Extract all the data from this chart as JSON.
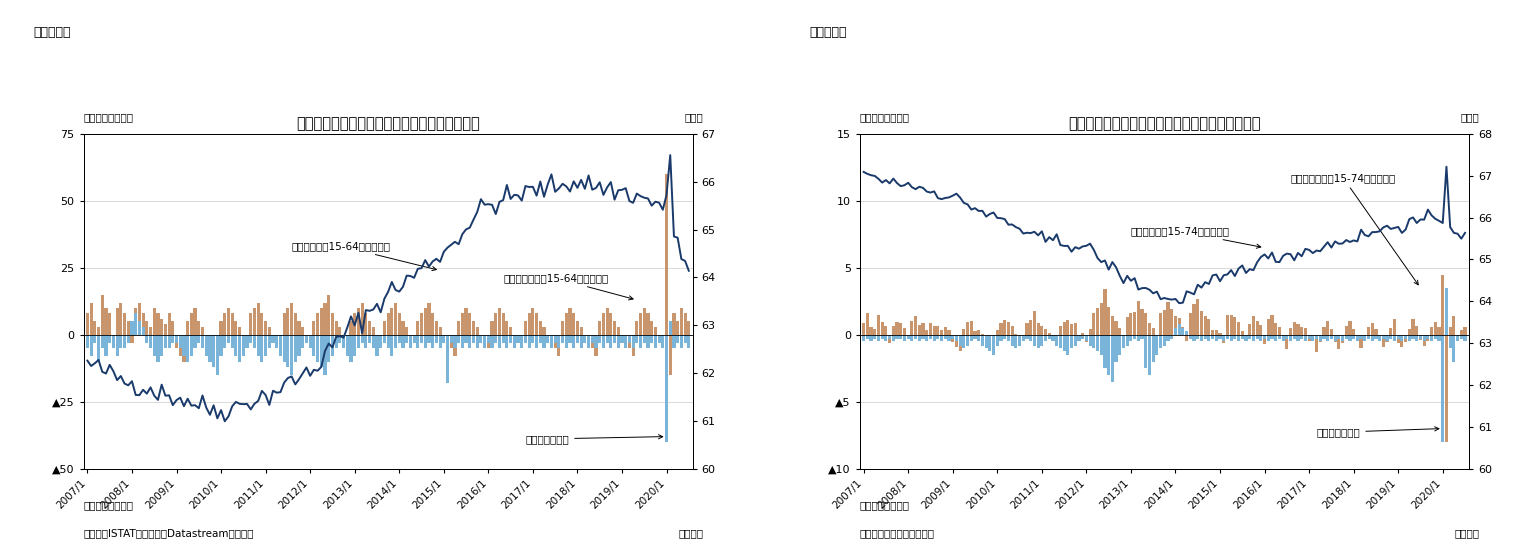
{
  "fig6": {
    "title_label": "（図表６）",
    "title": "イタリアの失業者・非労働力人口・労働参加率",
    "ylabel_left": "（前月差、万人）",
    "ylabel_right": "（％）",
    "ylim_left": [
      -50,
      75
    ],
    "ylim_right": [
      60,
      67
    ],
    "yticks_left": [
      -50,
      -25,
      0,
      25,
      50,
      75
    ],
    "yticks_right": [
      60,
      61,
      62,
      63,
      64,
      65,
      66,
      67
    ],
    "note1": "（注）季節調整値",
    "note2": "（資料）ISTATのデータをDatastreamより取得",
    "month_label": "（月次）",
    "annotation1": "非労働者人口（15-64才）の変化",
    "annotation2": "労働参加率（15-64才、右軸）",
    "annotation3": "失業者数の変化",
    "bar_color_neet": "#c8956c",
    "bar_color_unemp": "#7ab4d8",
    "line_color": "#1a3a6b"
  },
  "fig7": {
    "title_label": "（図表７）",
    "title": "ポルトガルの失業者・非労働力人口・労働参加率",
    "ylabel_left": "（前月差、万人）",
    "ylabel_right": "（％）",
    "ylim_left": [
      -10,
      15
    ],
    "ylim_right": [
      60,
      68
    ],
    "yticks_left": [
      -10,
      -5,
      0,
      5,
      10,
      15
    ],
    "yticks_right": [
      60,
      61,
      62,
      63,
      64,
      65,
      66,
      67,
      68
    ],
    "note1": "（注）季節調整値",
    "note2": "（資料）ポルトガル統計局",
    "month_label": "（月次）",
    "annotation1": "非労働者人口（15-74才）の変化",
    "annotation2": "労働参加率（15-74才、右軸）",
    "annotation3": "失業者数の変化",
    "bar_color_neet": "#c8956c",
    "bar_color_unemp": "#7ab4d8",
    "line_color": "#1a3a6b"
  }
}
